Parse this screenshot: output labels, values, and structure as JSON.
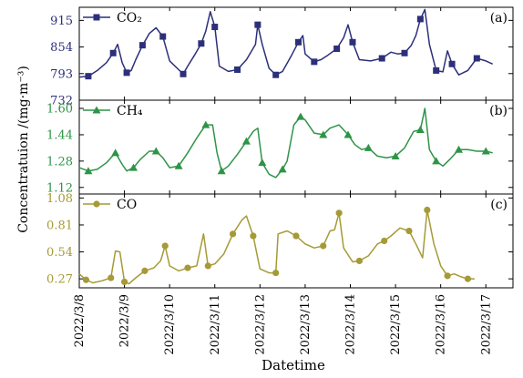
{
  "chart_data": {
    "type": "line",
    "xlabel": "Datetime",
    "ylabel": "Concentratuion /(mg·m⁻³)",
    "x_ticks": [
      "2022/3/8",
      "2022/3/9",
      "2022/3/10",
      "2022/3/11",
      "2022/3/12",
      "2022/3/13",
      "2022/3/14",
      "2022/3/15",
      "2022/3/16",
      "2022/3/17"
    ],
    "x_range": [
      0.0,
      9.6
    ],
    "grid": false,
    "panels": [
      {
        "letter": "(a)",
        "legend": "CO₂",
        "color": "#2c2f7a",
        "marker": "square",
        "ylim": [
          732,
          945
        ],
        "yticks": [
          "732",
          "793",
          "854",
          "915"
        ],
        "ytick_values": [
          732,
          793,
          854,
          915
        ],
        "points": [
          [
            0.0,
            785
          ],
          [
            0.2,
            787
          ],
          [
            0.4,
            800
          ],
          [
            0.6,
            818
          ],
          [
            0.75,
            840
          ],
          [
            0.85,
            860
          ],
          [
            0.95,
            818
          ],
          [
            1.05,
            795
          ],
          [
            1.15,
            800
          ],
          [
            1.25,
            825
          ],
          [
            1.4,
            858
          ],
          [
            1.55,
            885
          ],
          [
            1.7,
            898
          ],
          [
            1.85,
            878
          ],
          [
            2.0,
            822
          ],
          [
            2.2,
            802
          ],
          [
            2.3,
            792
          ],
          [
            2.4,
            810
          ],
          [
            2.55,
            835
          ],
          [
            2.7,
            862
          ],
          [
            2.8,
            890
          ],
          [
            2.9,
            935
          ],
          [
            3.0,
            900
          ],
          [
            3.1,
            810
          ],
          [
            3.3,
            798
          ],
          [
            3.5,
            802
          ],
          [
            3.7,
            825
          ],
          [
            3.9,
            860
          ],
          [
            3.95,
            905
          ],
          [
            4.05,
            860
          ],
          [
            4.2,
            805
          ],
          [
            4.35,
            790
          ],
          [
            4.5,
            798
          ],
          [
            4.7,
            835
          ],
          [
            4.85,
            865
          ],
          [
            4.95,
            880
          ],
          [
            5.0,
            838
          ],
          [
            5.2,
            820
          ],
          [
            5.35,
            825
          ],
          [
            5.5,
            835
          ],
          [
            5.7,
            850
          ],
          [
            5.85,
            875
          ],
          [
            5.95,
            905
          ],
          [
            6.05,
            865
          ],
          [
            6.2,
            825
          ],
          [
            6.45,
            822
          ],
          [
            6.7,
            828
          ],
          [
            6.9,
            842
          ],
          [
            7.05,
            838
          ],
          [
            7.2,
            840
          ],
          [
            7.35,
            858
          ],
          [
            7.45,
            880
          ],
          [
            7.55,
            918
          ],
          [
            7.65,
            940
          ],
          [
            7.75,
            860
          ],
          [
            7.9,
            800
          ],
          [
            8.05,
            797
          ],
          [
            8.15,
            845
          ],
          [
            8.25,
            815
          ],
          [
            8.4,
            790
          ],
          [
            8.6,
            800
          ],
          [
            8.8,
            828
          ],
          [
            9.0,
            822
          ],
          [
            9.15,
            815
          ]
        ]
      },
      {
        "letter": "(b)",
        "legend": "CH₄",
        "color": "#2e9447",
        "marker": "triangle",
        "ylim": [
          1.08,
          1.65
        ],
        "yticks": [
          "1.12",
          "1.28",
          "1.44",
          "1.60"
        ],
        "ytick_values": [
          1.12,
          1.28,
          1.44,
          1.6
        ],
        "points": [
          [
            0.0,
            1.24
          ],
          [
            0.2,
            1.22
          ],
          [
            0.4,
            1.23
          ],
          [
            0.6,
            1.27
          ],
          [
            0.8,
            1.33
          ],
          [
            0.95,
            1.26
          ],
          [
            1.05,
            1.22
          ],
          [
            1.2,
            1.24
          ],
          [
            1.35,
            1.29
          ],
          [
            1.55,
            1.34
          ],
          [
            1.7,
            1.34
          ],
          [
            1.85,
            1.3
          ],
          [
            2.0,
            1.24
          ],
          [
            2.2,
            1.25
          ],
          [
            2.4,
            1.33
          ],
          [
            2.6,
            1.42
          ],
          [
            2.8,
            1.5
          ],
          [
            2.95,
            1.5
          ],
          [
            3.05,
            1.33
          ],
          [
            3.15,
            1.22
          ],
          [
            3.3,
            1.25
          ],
          [
            3.5,
            1.32
          ],
          [
            3.7,
            1.4
          ],
          [
            3.85,
            1.46
          ],
          [
            3.95,
            1.48
          ],
          [
            4.05,
            1.27
          ],
          [
            4.2,
            1.2
          ],
          [
            4.35,
            1.18
          ],
          [
            4.5,
            1.23
          ],
          [
            4.6,
            1.28
          ],
          [
            4.75,
            1.5
          ],
          [
            4.9,
            1.55
          ],
          [
            5.0,
            1.53
          ],
          [
            5.2,
            1.45
          ],
          [
            5.4,
            1.44
          ],
          [
            5.55,
            1.48
          ],
          [
            5.75,
            1.5
          ],
          [
            5.95,
            1.44
          ],
          [
            6.1,
            1.38
          ],
          [
            6.25,
            1.35
          ],
          [
            6.4,
            1.36
          ],
          [
            6.6,
            1.31
          ],
          [
            6.8,
            1.3
          ],
          [
            7.0,
            1.31
          ],
          [
            7.2,
            1.36
          ],
          [
            7.4,
            1.46
          ],
          [
            7.55,
            1.47
          ],
          [
            7.65,
            1.6
          ],
          [
            7.75,
            1.35
          ],
          [
            7.9,
            1.28
          ],
          [
            8.05,
            1.25
          ],
          [
            8.2,
            1.29
          ],
          [
            8.4,
            1.35
          ],
          [
            8.6,
            1.35
          ],
          [
            8.8,
            1.34
          ],
          [
            9.0,
            1.34
          ],
          [
            9.15,
            1.33
          ]
        ]
      },
      {
        "letter": "(c)",
        "legend": "CO",
        "color": "#a59a36",
        "marker": "circle",
        "ylim": [
          0.18,
          1.12
        ],
        "yticks": [
          "0.27",
          "0.54",
          "0.81",
          "1.08"
        ],
        "ytick_values": [
          0.27,
          0.54,
          0.81,
          1.08
        ],
        "points": [
          [
            0.0,
            0.32
          ],
          [
            0.15,
            0.26
          ],
          [
            0.3,
            0.23
          ],
          [
            0.5,
            0.25
          ],
          [
            0.7,
            0.28
          ],
          [
            0.8,
            0.55
          ],
          [
            0.9,
            0.54
          ],
          [
            1.0,
            0.24
          ],
          [
            1.1,
            0.22
          ],
          [
            1.25,
            0.28
          ],
          [
            1.45,
            0.35
          ],
          [
            1.65,
            0.38
          ],
          [
            1.8,
            0.45
          ],
          [
            1.9,
            0.6
          ],
          [
            2.0,
            0.4
          ],
          [
            2.2,
            0.35
          ],
          [
            2.4,
            0.38
          ],
          [
            2.6,
            0.4
          ],
          [
            2.75,
            0.72
          ],
          [
            2.85,
            0.4
          ],
          [
            3.0,
            0.42
          ],
          [
            3.2,
            0.52
          ],
          [
            3.4,
            0.72
          ],
          [
            3.6,
            0.86
          ],
          [
            3.7,
            0.9
          ],
          [
            3.85,
            0.7
          ],
          [
            4.0,
            0.37
          ],
          [
            4.2,
            0.33
          ],
          [
            4.35,
            0.33
          ],
          [
            4.4,
            0.72
          ],
          [
            4.6,
            0.75
          ],
          [
            4.8,
            0.7
          ],
          [
            5.0,
            0.62
          ],
          [
            5.2,
            0.58
          ],
          [
            5.4,
            0.6
          ],
          [
            5.55,
            0.75
          ],
          [
            5.65,
            0.76
          ],
          [
            5.75,
            0.93
          ],
          [
            5.85,
            0.58
          ],
          [
            6.05,
            0.44
          ],
          [
            6.2,
            0.45
          ],
          [
            6.4,
            0.5
          ],
          [
            6.6,
            0.62
          ],
          [
            6.75,
            0.65
          ],
          [
            6.9,
            0.7
          ],
          [
            7.1,
            0.78
          ],
          [
            7.3,
            0.75
          ],
          [
            7.45,
            0.62
          ],
          [
            7.6,
            0.48
          ],
          [
            7.7,
            0.96
          ],
          [
            7.85,
            0.62
          ],
          [
            8.0,
            0.4
          ],
          [
            8.15,
            0.3
          ],
          [
            8.3,
            0.32
          ],
          [
            8.45,
            0.29
          ],
          [
            8.6,
            0.27
          ],
          [
            8.75,
            0.27
          ]
        ]
      }
    ]
  }
}
